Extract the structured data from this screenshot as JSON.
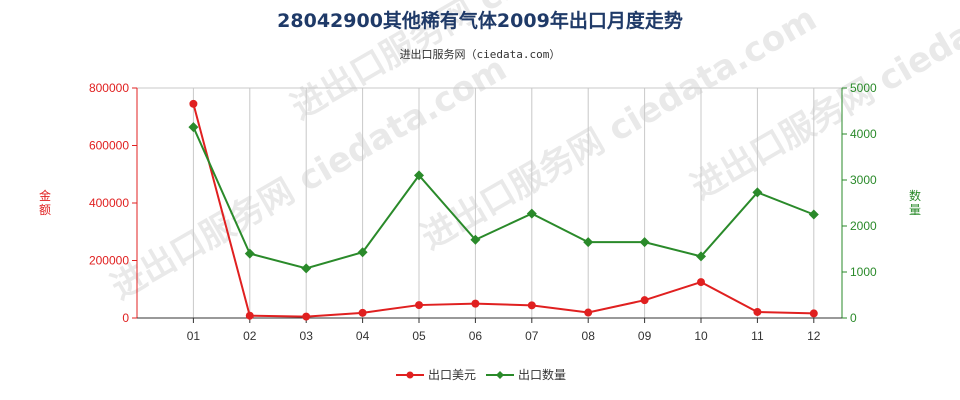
{
  "watermark": "进出口服务网 ciedata.com",
  "chart_data": {
    "type": "line",
    "title": "28042900其他稀有气体2009年出口月度走势",
    "subtitle": "进出口服务网（ciedata.com）",
    "categories": [
      "01",
      "02",
      "03",
      "04",
      "05",
      "06",
      "07",
      "08",
      "09",
      "10",
      "11",
      "12"
    ],
    "y_left": {
      "label": "金额",
      "range": [
        0,
        800000
      ],
      "ticks": [
        0,
        200000,
        400000,
        600000,
        800000
      ],
      "tick_labels": [
        "0",
        "200000",
        "400000",
        "600000",
        "800000"
      ],
      "color": "#e02020"
    },
    "y_right": {
      "label": "数量",
      "range": [
        0,
        5000
      ],
      "ticks": [
        0,
        1000,
        2000,
        3000,
        4000,
        5000
      ],
      "tick_labels": [
        "0",
        "1000",
        "2000",
        "3000",
        "4000",
        "5000"
      ],
      "color": "#2a8a2a"
    },
    "series": [
      {
        "name": "出口美元",
        "axis": "left",
        "color": "#e02020",
        "marker": "circle",
        "values": [
          745000,
          8000,
          5000,
          18000,
          45000,
          50000,
          44000,
          19000,
          62000,
          125000,
          21000,
          16000
        ]
      },
      {
        "name": "出口数量",
        "axis": "right",
        "color": "#2a8a2a",
        "marker": "diamond",
        "values": [
          4150,
          1400,
          1080,
          1430,
          3100,
          1700,
          2270,
          1650,
          1650,
          1340,
          2730,
          2250
        ]
      }
    ],
    "grid": "vertical",
    "legend_position": "bottom-center"
  }
}
